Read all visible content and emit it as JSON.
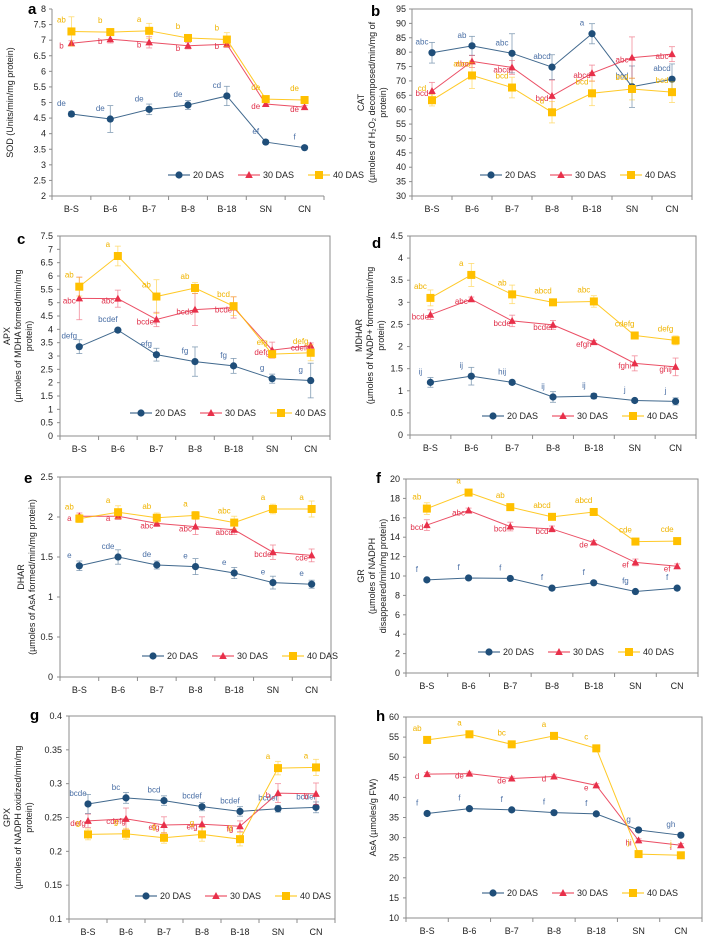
{
  "colors": {
    "20 DAS": "#1f4e79",
    "30 DAS": "#e8304a",
    "40 DAS": "#ffc000",
    "label_20 DAS": "#4a6fa5",
    "label_30 DAS": "#e0304a",
    "label_40 DAS": "#f0b400"
  },
  "chart_data": [
    {
      "id": "a",
      "type": "line",
      "panel_label": "a",
      "ylabel": [
        "SOD (Units/min/mg protein)"
      ],
      "categories": [
        "B-S",
        "B-6",
        "B-7",
        "B-8",
        "B-18",
        "SN",
        "CN"
      ],
      "ylim": [
        2,
        8
      ],
      "yticks": [
        2,
        2.5,
        3,
        3.5,
        4,
        4.5,
        5,
        5.5,
        6,
        6.5,
        7,
        7.5,
        8
      ],
      "plot_border": false,
      "legend_position": "bottom-right",
      "series": [
        {
          "name": "20 DAS",
          "marker": "circle",
          "values": [
            4.63,
            4.47,
            4.78,
            4.92,
            5.21,
            3.73,
            3.55
          ],
          "errors": [
            0.08,
            0.43,
            0.17,
            0.14,
            0.31,
            0.04,
            0.04
          ],
          "labels": [
            "de",
            "de",
            "de",
            "de",
            "cd",
            "ef",
            "f"
          ]
        },
        {
          "name": "30 DAS",
          "marker": "triangle",
          "values": [
            6.9,
            7.03,
            6.93,
            6.82,
            6.87,
            4.95,
            4.85
          ],
          "errors": [
            0.08,
            0.12,
            0.18,
            0.1,
            0.1,
            0.05,
            0.06
          ],
          "labels": [
            "b",
            "b",
            "b",
            "b",
            "b",
            "de",
            "de"
          ]
        },
        {
          "name": "40 DAS",
          "marker": "square",
          "values": [
            7.28,
            7.26,
            7.3,
            7.07,
            7.02,
            5.11,
            5.08
          ],
          "errors": [
            0.47,
            0.08,
            0.24,
            0.1,
            0.22,
            0.08,
            0.08
          ],
          "labels": [
            "ab",
            "b",
            "a",
            "b",
            "b",
            "de",
            "de"
          ]
        }
      ]
    },
    {
      "id": "b",
      "type": "line",
      "panel_label": "b",
      "ylabel": [
        "CAT",
        "(µmoles of H₂O₂ decomposed/min/mg of",
        "protein)"
      ],
      "categories": [
        "B-S",
        "B-6",
        "B-7",
        "B-8",
        "B-18",
        "SN",
        "CN"
      ],
      "ylim": [
        30,
        95
      ],
      "yticks": [
        30,
        35,
        40,
        45,
        50,
        55,
        60,
        65,
        70,
        75,
        80,
        85,
        90,
        95
      ],
      "plot_border": true,
      "legend_position": "bottom-center",
      "series": [
        {
          "name": "20 DAS",
          "marker": "circle",
          "values": [
            79.8,
            82.2,
            79.6,
            74.8,
            86.4,
            68.0,
            70.6
          ],
          "errors": [
            3.6,
            3.3,
            6.8,
            4.3,
            3.5,
            7.2,
            5.3
          ],
          "labels": [
            "abc",
            "ab",
            "abc",
            "abcd",
            "a",
            "bcd",
            "abcd"
          ]
        },
        {
          "name": "30 DAS",
          "marker": "triangle",
          "values": [
            66.5,
            76.8,
            74.7,
            64.8,
            72.7,
            78.1,
            79.3
          ],
          "errors": [
            3.0,
            2.1,
            2.4,
            5.5,
            2.8,
            7.2,
            2.6
          ],
          "labels": [
            "bcd",
            "abc",
            "abcd",
            "bcd",
            "abcd",
            "abc",
            "abc"
          ]
        },
        {
          "name": "40 DAS",
          "marker": "square",
          "values": [
            63.3,
            71.9,
            67.7,
            59.1,
            65.7,
            67.2,
            66.1
          ],
          "errors": [
            2.0,
            4.5,
            3.6,
            3.7,
            4.3,
            3.8,
            3.6
          ],
          "labels": [
            "cd",
            "abcd",
            "bcd",
            "d",
            "bcd",
            "bcd",
            "bcd"
          ]
        }
      ]
    },
    {
      "id": "c",
      "type": "line",
      "panel_label": "c",
      "ylabel": [
        "APX",
        "(µmoles of MDHA formed/min/mg",
        "protein)"
      ],
      "categories": [
        "B-S",
        "B-6",
        "B-7",
        "B-8",
        "B-18",
        "SN",
        "CN"
      ],
      "ylim": [
        0,
        7.5
      ],
      "yticks": [
        0,
        0.5,
        1,
        1.5,
        2,
        2.5,
        3,
        3.5,
        4,
        4.5,
        5,
        5.5,
        6,
        6.5,
        7,
        7.5
      ],
      "plot_border": true,
      "legend_position": "bottom-center",
      "series": [
        {
          "name": "20 DAS",
          "marker": "circle",
          "values": [
            3.35,
            3.97,
            3.05,
            2.79,
            2.63,
            2.15,
            2.08
          ],
          "errors": [
            0.26,
            0.05,
            0.24,
            0.55,
            0.28,
            0.17,
            0.65
          ],
          "labels": [
            "defg",
            "bcdef",
            "efg",
            "fg",
            "fg",
            "g",
            "g"
          ]
        },
        {
          "name": "30 DAS",
          "marker": "triangle",
          "values": [
            5.16,
            5.15,
            4.37,
            4.74,
            4.82,
            3.22,
            3.39
          ],
          "errors": [
            0.8,
            0.32,
            0.27,
            0.6,
            0.4,
            0.3,
            0.1
          ],
          "labels": [
            "abc",
            "abc",
            "bcdef",
            "bcde",
            "bcde",
            "defg",
            "cdefg"
          ]
        },
        {
          "name": "40 DAS",
          "marker": "square",
          "values": [
            5.6,
            6.75,
            5.23,
            5.55,
            4.87,
            3.07,
            3.12
          ],
          "errors": [
            0.35,
            0.37,
            0.63,
            0.2,
            0.35,
            0.12,
            0.3
          ],
          "labels": [
            "ab",
            "a",
            "ab",
            "ab",
            "bcd",
            "efg",
            "defg"
          ]
        }
      ]
    },
    {
      "id": "d",
      "type": "line",
      "panel_label": "d",
      "ylabel": [
        "MDHAR",
        "(µmoles of NADP+ formed/min/mg",
        "protein)"
      ],
      "categories": [
        "B-S",
        "B-6",
        "B-7",
        "B-8",
        "B-18",
        "SN",
        "CN"
      ],
      "ylim": [
        0,
        4.5
      ],
      "yticks": [
        0,
        0.5,
        1,
        1.5,
        2,
        2.5,
        3,
        3.5,
        4,
        4.5
      ],
      "plot_border": true,
      "legend_position": "bottom-center",
      "series": [
        {
          "name": "20 DAS",
          "marker": "circle",
          "values": [
            1.19,
            1.33,
            1.19,
            0.86,
            0.88,
            0.78,
            0.76
          ],
          "errors": [
            0.11,
            0.2,
            0.05,
            0.12,
            0.06,
            0.04,
            0.08
          ],
          "labels": [
            "ij",
            "ij",
            "hij",
            "ij",
            "ij",
            "j",
            "j"
          ]
        },
        {
          "name": "30 DAS",
          "marker": "triangle",
          "values": [
            2.72,
            3.07,
            2.58,
            2.49,
            2.1,
            1.62,
            1.54
          ],
          "errors": [
            0.11,
            0.05,
            0.13,
            0.1,
            0.04,
            0.17,
            0.2
          ],
          "labels": [
            "bcde",
            "abc",
            "bcde",
            "bcdef",
            "efgh",
            "fghi",
            "ghij"
          ]
        },
        {
          "name": "40 DAS",
          "marker": "square",
          "values": [
            3.1,
            3.62,
            3.18,
            3.0,
            3.02,
            2.25,
            2.14
          ],
          "errors": [
            0.18,
            0.26,
            0.21,
            0.06,
            0.13,
            0.08,
            0.1
          ],
          "labels": [
            "abc",
            "a",
            "ab",
            "abcd",
            "abc",
            "cdefg",
            "defg"
          ]
        }
      ]
    },
    {
      "id": "e",
      "type": "line",
      "panel_label": "e",
      "ylabel": [
        "DHAR",
        "(µmoles of AsA formed/min/mg protein)"
      ],
      "categories": [
        "B-S",
        "B-6",
        "B-7",
        "B-8",
        "B-18",
        "SN",
        "CN"
      ],
      "ylim": [
        0,
        2.5
      ],
      "yticks": [
        0,
        0.5,
        1,
        1.5,
        2,
        2.5
      ],
      "plot_border": true,
      "legend_position": "bottom-center",
      "series": [
        {
          "name": "20 DAS",
          "marker": "circle",
          "values": [
            1.39,
            1.5,
            1.4,
            1.38,
            1.3,
            1.18,
            1.16
          ],
          "errors": [
            0.06,
            0.09,
            0.05,
            0.1,
            0.07,
            0.08,
            0.05
          ],
          "labels": [
            "e",
            "cde",
            "de",
            "e",
            "e",
            "e",
            "e"
          ]
        },
        {
          "name": "30 DAS",
          "marker": "triangle",
          "values": [
            2.01,
            2.01,
            1.92,
            1.88,
            1.84,
            1.56,
            1.52
          ],
          "errors": [
            0.04,
            0.04,
            0.04,
            0.1,
            0.06,
            0.09,
            0.08
          ],
          "labels": [
            "a",
            "a",
            "abc",
            "abc",
            "abcd",
            "bcde",
            "cde"
          ]
        },
        {
          "name": "40 DAS",
          "marker": "square",
          "values": [
            1.98,
            2.06,
            1.99,
            2.02,
            1.93,
            2.1,
            2.1
          ],
          "errors": [
            0.05,
            0.08,
            0.06,
            0.05,
            0.08,
            0.06,
            0.1
          ],
          "labels": [
            "ab",
            "a",
            "ab",
            "a",
            "abc",
            "a",
            "a"
          ]
        }
      ]
    },
    {
      "id": "f",
      "type": "line",
      "panel_label": "f",
      "ylabel": [
        "GR",
        "(µmoles of NADPH",
        "disappeared/min/mg protein)"
      ],
      "categories": [
        "B-S",
        "B-6",
        "B-7",
        "B-8",
        "B-18",
        "SN",
        "CN"
      ],
      "ylim": [
        0,
        20
      ],
      "yticks": [
        0,
        2,
        4,
        6,
        8,
        10,
        12,
        14,
        16,
        18,
        20
      ],
      "plot_border": true,
      "legend_position": "bottom-center",
      "series": [
        {
          "name": "20 DAS",
          "marker": "circle",
          "values": [
            9.6,
            9.8,
            9.75,
            8.75,
            9.3,
            8.4,
            8.75
          ],
          "errors": [
            0.1,
            0.1,
            0.1,
            0.1,
            0.1,
            0.1,
            0.1
          ],
          "labels": [
            "f",
            "f",
            "f",
            "f",
            "f",
            "fg",
            "f"
          ]
        },
        {
          "name": "30 DAS",
          "marker": "triangle",
          "values": [
            15.25,
            16.75,
            15.1,
            14.85,
            13.45,
            11.4,
            11.0
          ],
          "errors": [
            0.55,
            0.25,
            0.45,
            0.3,
            0.2,
            0.35,
            0.25
          ],
          "labels": [
            "bcd",
            "abc",
            "bcd",
            "bcd",
            "de",
            "ef",
            "ef"
          ]
        },
        {
          "name": "40 DAS",
          "marker": "square",
          "values": [
            16.95,
            18.6,
            17.1,
            16.1,
            16.6,
            13.55,
            13.6
          ],
          "errors": [
            0.6,
            0.3,
            0.2,
            0.2,
            0.2,
            0.2,
            0.2
          ],
          "labels": [
            "ab",
            "a",
            "ab",
            "abcd",
            "abcd",
            "cde",
            "cde"
          ]
        }
      ]
    },
    {
      "id": "g",
      "type": "line",
      "panel_label": "g",
      "ylabel": [
        "GPX",
        "(µmoles of NADPH oxidized/min/mg",
        "protein)"
      ],
      "categories": [
        "B-S",
        "B-6",
        "B-7",
        "B-8",
        "B-18",
        "SN",
        "CN"
      ],
      "ylim": [
        0.1,
        0.4
      ],
      "yticks": [
        0.1,
        0.15,
        0.2,
        0.25,
        0.3,
        0.35,
        0.4
      ],
      "plot_border": true,
      "legend_position": "bottom-center",
      "series": [
        {
          "name": "20 DAS",
          "marker": "circle",
          "values": [
            0.27,
            0.279,
            0.275,
            0.266,
            0.259,
            0.263,
            0.265
          ],
          "errors": [
            0.014,
            0.008,
            0.007,
            0.006,
            0.007,
            0.005,
            0.008
          ],
          "labels": [
            "bcde",
            "bc",
            "bcd",
            "bcdef",
            "bcdef",
            "bcdef",
            "bcdef"
          ]
        },
        {
          "name": "30 DAS",
          "marker": "triangle",
          "values": [
            0.245,
            0.248,
            0.239,
            0.24,
            0.237,
            0.286,
            0.285
          ],
          "errors": [
            0.01,
            0.016,
            0.012,
            0.011,
            0.008,
            0.014,
            0.016
          ],
          "labels": [
            "defg",
            "cdefg",
            "efg",
            "efg",
            "fg",
            "b",
            "b"
          ]
        },
        {
          "name": "40 DAS",
          "marker": "square",
          "values": [
            0.225,
            0.226,
            0.22,
            0.225,
            0.218,
            0.323,
            0.324
          ],
          "errors": [
            0.008,
            0.008,
            0.008,
            0.01,
            0.01,
            0.01,
            0.012
          ],
          "labels": [
            "g",
            "g",
            "g",
            "g",
            "g",
            "a",
            "a"
          ]
        }
      ]
    },
    {
      "id": "h",
      "type": "line",
      "panel_label": "h",
      "ylabel": [
        "AsA  (µmoles/g FW)"
      ],
      "categories": [
        "B-S",
        "B-6",
        "B-7",
        "B-8",
        "B-18",
        "SN",
        "CN"
      ],
      "ylim": [
        10,
        60
      ],
      "yticks": [
        10,
        15,
        20,
        25,
        30,
        35,
        40,
        45,
        50,
        55,
        60
      ],
      "plot_border": true,
      "legend_position": "bottom-center",
      "series": [
        {
          "name": "20 DAS",
          "marker": "circle",
          "values": [
            36.0,
            37.2,
            36.9,
            36.2,
            35.9,
            31.9,
            30.6
          ],
          "errors": [
            0.3,
            0.3,
            0.3,
            0.3,
            0.3,
            0.3,
            0.3
          ],
          "labels": [
            "f",
            "f",
            "f",
            "f",
            "f",
            "g",
            "gh"
          ]
        },
        {
          "name": "30 DAS",
          "marker": "triangle",
          "values": [
            45.8,
            45.9,
            44.7,
            45.2,
            43.0,
            29.3,
            28.1
          ],
          "errors": [
            0.4,
            0.4,
            0.4,
            0.4,
            0.4,
            0.4,
            0.4
          ],
          "labels": [
            "d",
            "de",
            "de",
            "d",
            "e",
            "hi",
            "i"
          ]
        },
        {
          "name": "40 DAS",
          "marker": "square",
          "values": [
            54.3,
            55.7,
            53.2,
            55.3,
            52.2,
            25.9,
            25.6
          ],
          "errors": [
            0.4,
            0.4,
            0.4,
            0.4,
            0.4,
            0.4,
            0.4
          ],
          "labels": [
            "ab",
            "a",
            "bc",
            "a",
            "c",
            "j",
            "j"
          ]
        }
      ]
    }
  ]
}
